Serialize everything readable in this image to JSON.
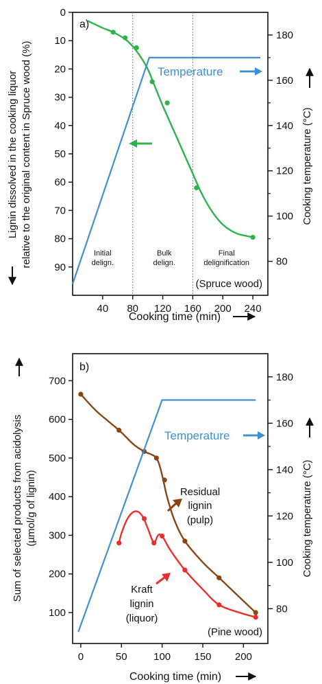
{
  "chart_data": [
    {
      "type": "line",
      "panel": "a)",
      "xlabel": "Cooking time (min)",
      "ylabel_left": "Lignin dissolved in the cooking liquor",
      "ylabel_left2": "relative to the original content in Spruce wood (%)",
      "ylabel_right": "Cooking temperature (°C)",
      "xlim": [
        0,
        260
      ],
      "ylim_left": [
        100,
        0
      ],
      "ylim_right": [
        65,
        190
      ],
      "x_ticks": [
        40,
        80,
        120,
        160,
        200,
        240
      ],
      "y_left_ticks": [
        0,
        10,
        20,
        30,
        40,
        50,
        60,
        70,
        80,
        90
      ],
      "y_right_ticks": [
        80,
        100,
        120,
        140,
        160,
        180
      ],
      "y_right_minor": [
        90,
        110,
        130,
        150,
        170
      ],
      "phase_lines_x": [
        80,
        160
      ],
      "phase_labels": [
        {
          "text": [
            "Initial",
            "delign."
          ],
          "x": 40
        },
        {
          "text": [
            "Bulk",
            "delign."
          ],
          "x": 122
        },
        {
          "text": [
            "Final",
            "delignification"
          ],
          "x": 205
        }
      ],
      "series": [
        {
          "name": "Lignin dissolved (%)",
          "axis": "left",
          "color": "#2db34a",
          "points": [
            [
              54,
              7
            ],
            [
              70,
              9
            ],
            [
              85,
              12.5
            ],
            [
              106,
              24.5
            ],
            [
              126,
              32
            ],
            [
              165,
              62
            ],
            [
              240,
              79.5
            ]
          ],
          "curve": [
            [
              20,
              3
            ],
            [
              40,
              5.5
            ],
            [
              54,
              7
            ],
            [
              70,
              9.5
            ],
            [
              80,
              12
            ],
            [
              90,
              15.5
            ],
            [
              100,
              20
            ],
            [
              110,
              26.5
            ],
            [
              120,
              33
            ],
            [
              130,
              39
            ],
            [
              140,
              45
            ],
            [
              150,
              51
            ],
            [
              160,
              57
            ],
            [
              170,
              63
            ],
            [
              180,
              68
            ],
            [
              190,
              72
            ],
            [
              200,
              75
            ],
            [
              210,
              77
            ],
            [
              220,
              78.3
            ],
            [
              240,
              79.5
            ]
          ]
        },
        {
          "name": "Temperature",
          "axis": "right",
          "color": "#3f8fd2",
          "curve": [
            [
              0,
              70
            ],
            [
              102,
              170
            ],
            [
              250,
              170
            ]
          ]
        }
      ],
      "annotations": {
        "temperature": "Temperature",
        "wood": "(Spruce wood)"
      }
    },
    {
      "type": "line",
      "panel": "b)",
      "xlabel": "Cooking time (min)",
      "ylabel_left": "Sum of selected products from acidolysis",
      "ylabel_left2": "(µmol/g of lignin)",
      "ylabel_right": "Cooking temperature (°C)",
      "xlim": [
        -10,
        230
      ],
      "ylim_left": [
        20,
        770
      ],
      "ylim_right": [
        65,
        190
      ],
      "x_ticks": [
        0,
        50,
        100,
        150,
        200
      ],
      "y_left_ticks": [
        100,
        200,
        300,
        400,
        500,
        600,
        700
      ],
      "y_right_ticks": [
        80,
        100,
        120,
        140,
        160,
        180
      ],
      "y_right_minor": [
        90,
        110,
        130,
        150,
        170
      ],
      "series": [
        {
          "name": "Residual lignin (pulp)",
          "axis": "left",
          "color": "#8b4513",
          "points": [
            [
              0,
              665
            ],
            [
              47,
              572
            ],
            [
              78,
              517
            ],
            [
              93,
              500
            ],
            [
              103,
              443
            ],
            [
              128,
              285
            ],
            [
              170,
              190
            ],
            [
              215,
              100
            ]
          ],
          "curve": [
            [
              0,
              665
            ],
            [
              20,
              620
            ],
            [
              47,
              572
            ],
            [
              65,
              535
            ],
            [
              78,
              517
            ],
            [
              88,
              508
            ],
            [
              93,
              500
            ],
            [
              97,
              480
            ],
            [
              101,
              447
            ],
            [
              106,
              400
            ],
            [
              115,
              340
            ],
            [
              128,
              285
            ],
            [
              150,
              230
            ],
            [
              170,
              190
            ],
            [
              195,
              140
            ],
            [
              215,
              100
            ]
          ]
        },
        {
          "name": "Kraft lignin (liquor)",
          "axis": "left",
          "color": "#e8302a",
          "points": [
            [
              47,
              280
            ],
            [
              78,
              343
            ],
            [
              90,
              280
            ],
            [
              100,
              298
            ],
            [
              128,
              210
            ],
            [
              170,
              120
            ],
            [
              215,
              88
            ]
          ],
          "curve": [
            [
              47,
              280
            ],
            [
              50,
              305
            ],
            [
              58,
              345
            ],
            [
              67,
              362
            ],
            [
              75,
              352
            ],
            [
              82,
              320
            ],
            [
              88,
              287
            ],
            [
              91,
              282
            ],
            [
              95,
              300
            ],
            [
              100,
              298
            ],
            [
              110,
              262
            ],
            [
              128,
              210
            ],
            [
              150,
              160
            ],
            [
              170,
              120
            ],
            [
              195,
              100
            ],
            [
              215,
              88
            ]
          ]
        },
        {
          "name": "Temperature",
          "axis": "right",
          "color": "#3f8fd2",
          "curve": [
            [
              -3,
              70
            ],
            [
              100,
              170
            ],
            [
              215,
              170
            ]
          ]
        }
      ],
      "annotations": {
        "temperature": "Temperature",
        "wood": "(Pine wood)",
        "residual": [
          "Residual",
          "lignin",
          "(pulp)"
        ],
        "kraft": [
          "Kraft",
          "lignin",
          "(liquor)"
        ]
      }
    }
  ]
}
